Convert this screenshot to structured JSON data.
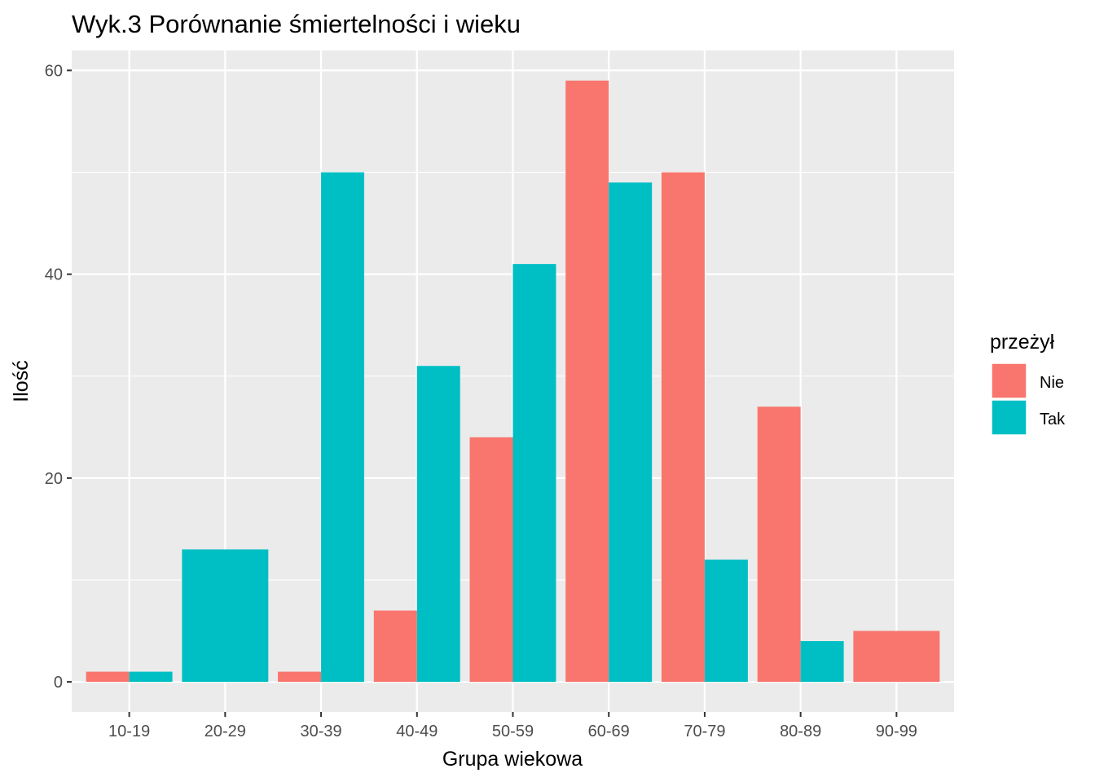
{
  "chart_data": {
    "type": "bar",
    "title": "Wyk.3 Porównanie śmiertelności i wieku",
    "xlabel": "Grupa wiekowa",
    "ylabel": "Ilość",
    "categories": [
      "10-19",
      "20-29",
      "30-39",
      "40-49",
      "50-59",
      "60-69",
      "70-79",
      "80-89",
      "90-99"
    ],
    "series": [
      {
        "name": "Nie",
        "color": "#F8766D",
        "values": [
          1,
          0,
          1,
          7,
          24,
          59,
          50,
          27,
          5
        ]
      },
      {
        "name": "Tak",
        "color": "#00BFC4",
        "values": [
          1,
          13,
          50,
          31,
          41,
          49,
          12,
          4,
          0
        ]
      }
    ],
    "ylim": [
      -2.95,
      61.95
    ],
    "yticks": [
      0,
      20,
      40,
      60
    ],
    "grid": true,
    "legend": {
      "title": "przeżył",
      "position": "right"
    },
    "bar_position": "dodge, a category with a single series shows one full-width bar"
  }
}
